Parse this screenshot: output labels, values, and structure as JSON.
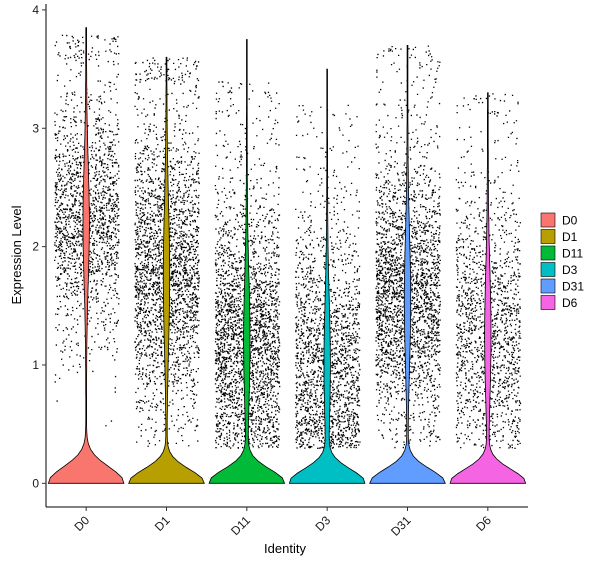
{
  "chart_data": {
    "type": "violin",
    "xlabel": "Identity",
    "ylabel": "Expression Level",
    "ylim": [
      -0.2,
      4.05
    ],
    "yticks": [
      0,
      1,
      2,
      3,
      4
    ],
    "grid": false,
    "legend_position": "right",
    "points_overlay": true,
    "categories": [
      "D0",
      "D1",
      "D11",
      "D3",
      "D31",
      "D6"
    ],
    "series": [
      {
        "name": "D0",
        "color": "#F8766D",
        "max": 3.85,
        "zero_bulb_top": 0.35,
        "body_center": 2.2,
        "body_spread": 0.5,
        "n_points": 1700,
        "point_max": 3.8
      },
      {
        "name": "D1",
        "color": "#B79F00",
        "max": 3.6,
        "zero_bulb_top": 0.3,
        "body_center": 1.75,
        "body_spread": 0.6,
        "n_points": 2500,
        "point_max": 3.6
      },
      {
        "name": "D11",
        "color": "#00BA38",
        "max": 3.75,
        "zero_bulb_top": 0.3,
        "body_center": 1.2,
        "body_spread": 0.55,
        "n_points": 2600,
        "point_max": 3.75
      },
      {
        "name": "D3",
        "color": "#00BFC4",
        "max": 3.5,
        "zero_bulb_top": 0.3,
        "body_center": 1.0,
        "body_spread": 0.55,
        "n_points": 1900,
        "point_max": 3.5
      },
      {
        "name": "D31",
        "color": "#619CFF",
        "max": 3.7,
        "zero_bulb_top": 0.3,
        "body_center": 1.55,
        "body_spread": 0.55,
        "n_points": 3400,
        "point_max": 3.7
      },
      {
        "name": "D6",
        "color": "#F564E3",
        "max": 3.3,
        "zero_bulb_top": 0.3,
        "body_center": 1.25,
        "body_spread": 0.55,
        "n_points": 1500,
        "point_max": 3.3
      }
    ]
  }
}
